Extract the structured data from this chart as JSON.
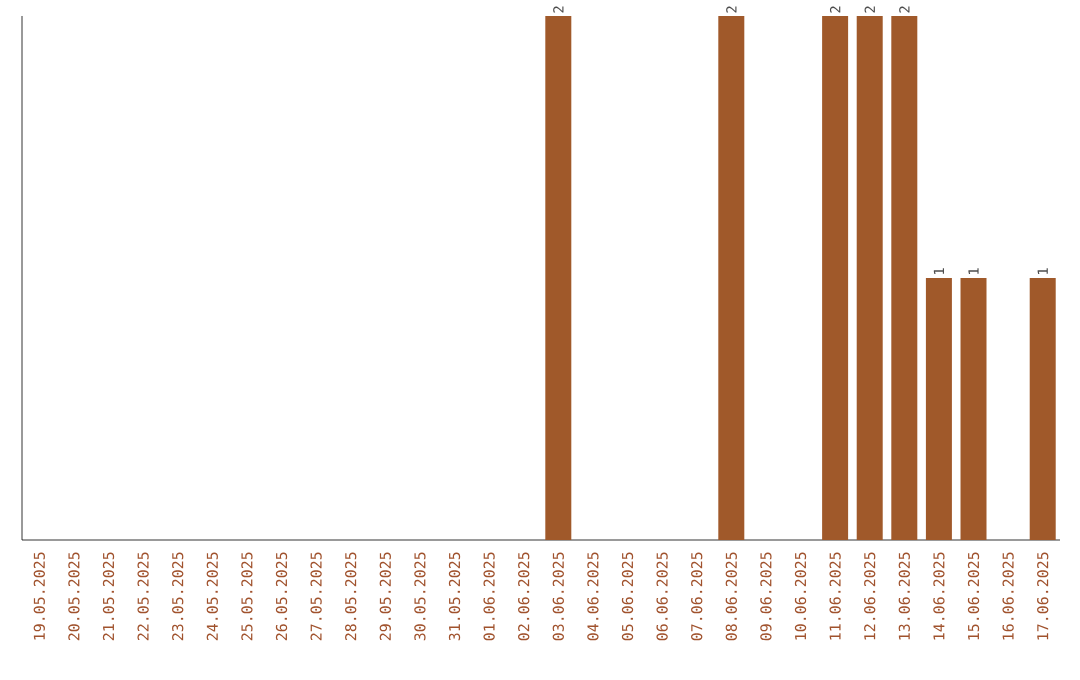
{
  "chart_data": {
    "type": "bar",
    "categories": [
      "19.05.2025",
      "20.05.2025",
      "21.05.2025",
      "22.05.2025",
      "23.05.2025",
      "24.05.2025",
      "25.05.2025",
      "26.05.2025",
      "27.05.2025",
      "28.05.2025",
      "29.05.2025",
      "30.05.2025",
      "31.05.2025",
      "01.06.2025",
      "02.06.2025",
      "03.06.2025",
      "04.06.2025",
      "05.06.2025",
      "06.06.2025",
      "07.06.2025",
      "08.06.2025",
      "09.06.2025",
      "10.06.2025",
      "11.06.2025",
      "12.06.2025",
      "13.06.2025",
      "14.06.2025",
      "15.06.2025",
      "16.06.2025",
      "17.06.2025"
    ],
    "values": [
      null,
      null,
      null,
      null,
      null,
      null,
      null,
      null,
      null,
      null,
      null,
      null,
      null,
      null,
      null,
      2,
      null,
      null,
      null,
      null,
      2,
      null,
      null,
      2,
      2,
      2,
      1,
      1,
      null,
      1
    ],
    "data_labels": true,
    "color": "#a0592a",
    "grid": false
  }
}
